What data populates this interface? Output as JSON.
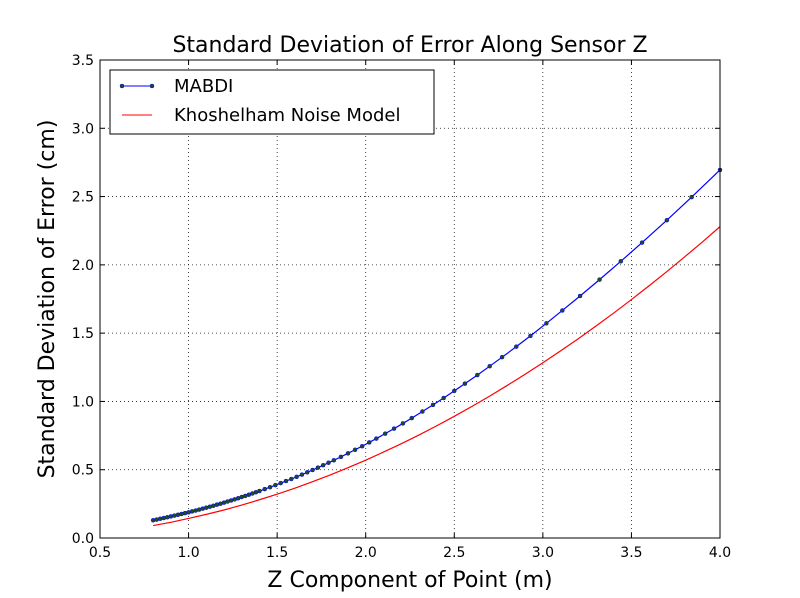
{
  "chart_data": {
    "type": "line",
    "title": "Standard Deviation of Error Along Sensor Z",
    "xlabel": "Z Component of Point (m)",
    "ylabel": "Standard Deviation of Error (cm)",
    "xlim": [
      0.5,
      4.0
    ],
    "ylim": [
      0.0,
      3.5
    ],
    "xticks": [
      "0.5",
      "1.0",
      "1.5",
      "2.0",
      "2.5",
      "3.0",
      "3.5",
      "4.0"
    ],
    "yticks": [
      "0.0",
      "0.5",
      "1.0",
      "1.5",
      "2.0",
      "2.5",
      "3.0",
      "3.5"
    ],
    "grid": true,
    "legend_position": "top-left",
    "series": [
      {
        "name": "MABDI",
        "color": "#0000ff",
        "marker_color": "#1f4d1f",
        "x": [
          0.8,
          0.82,
          0.84,
          0.86,
          0.88,
          0.9,
          0.92,
          0.94,
          0.96,
          0.98,
          1.0,
          1.02,
          1.04,
          1.06,
          1.08,
          1.1,
          1.12,
          1.14,
          1.16,
          1.18,
          1.2,
          1.22,
          1.24,
          1.26,
          1.28,
          1.3,
          1.32,
          1.34,
          1.36,
          1.38,
          1.4,
          1.43,
          1.46,
          1.49,
          1.52,
          1.55,
          1.58,
          1.61,
          1.64,
          1.67,
          1.7,
          1.73,
          1.76,
          1.79,
          1.82,
          1.86,
          1.9,
          1.94,
          1.98,
          2.02,
          2.06,
          2.11,
          2.16,
          2.21,
          2.26,
          2.32,
          2.38,
          2.44,
          2.5,
          2.56,
          2.63,
          2.7,
          2.77,
          2.85,
          2.93,
          3.02,
          3.11,
          3.21,
          3.32,
          3.44,
          3.56,
          3.7,
          3.84,
          4.0
        ],
        "y": [
          0.13,
          0.135,
          0.141,
          0.146,
          0.152,
          0.158,
          0.164,
          0.17,
          0.176,
          0.182,
          0.188,
          0.195,
          0.201,
          0.208,
          0.215,
          0.222,
          0.229,
          0.236,
          0.244,
          0.251,
          0.259,
          0.267,
          0.275,
          0.283,
          0.291,
          0.3,
          0.308,
          0.317,
          0.326,
          0.335,
          0.344,
          0.358,
          0.372,
          0.387,
          0.402,
          0.417,
          0.432,
          0.448,
          0.464,
          0.481,
          0.498,
          0.515,
          0.533,
          0.551,
          0.569,
          0.594,
          0.62,
          0.646,
          0.672,
          0.7,
          0.728,
          0.764,
          0.801,
          0.839,
          0.878,
          0.926,
          0.975,
          1.025,
          1.077,
          1.13,
          1.193,
          1.258,
          1.324,
          1.401,
          1.48,
          1.572,
          1.666,
          1.772,
          1.892,
          2.026,
          2.163,
          2.327,
          2.496,
          2.695
        ]
      },
      {
        "name": "Khoshelham Noise Model",
        "color": "#ff0000",
        "x": [
          0.8,
          0.9,
          1.0,
          1.1,
          1.2,
          1.3,
          1.4,
          1.5,
          1.6,
          1.7,
          1.8,
          1.9,
          2.0,
          2.1,
          2.2,
          2.3,
          2.4,
          2.5,
          2.6,
          2.7,
          2.8,
          2.9,
          3.0,
          3.1,
          3.2,
          3.3,
          3.4,
          3.5,
          3.6,
          3.7,
          3.8,
          3.9,
          4.0
        ],
        "y": [
          0.091,
          0.115,
          0.143,
          0.173,
          0.205,
          0.241,
          0.28,
          0.321,
          0.365,
          0.412,
          0.462,
          0.515,
          0.57,
          0.629,
          0.69,
          0.754,
          0.821,
          0.891,
          0.964,
          1.039,
          1.118,
          1.199,
          1.283,
          1.37,
          1.459,
          1.552,
          1.647,
          1.746,
          1.847,
          1.951,
          2.058,
          2.167,
          2.28
        ]
      }
    ]
  }
}
